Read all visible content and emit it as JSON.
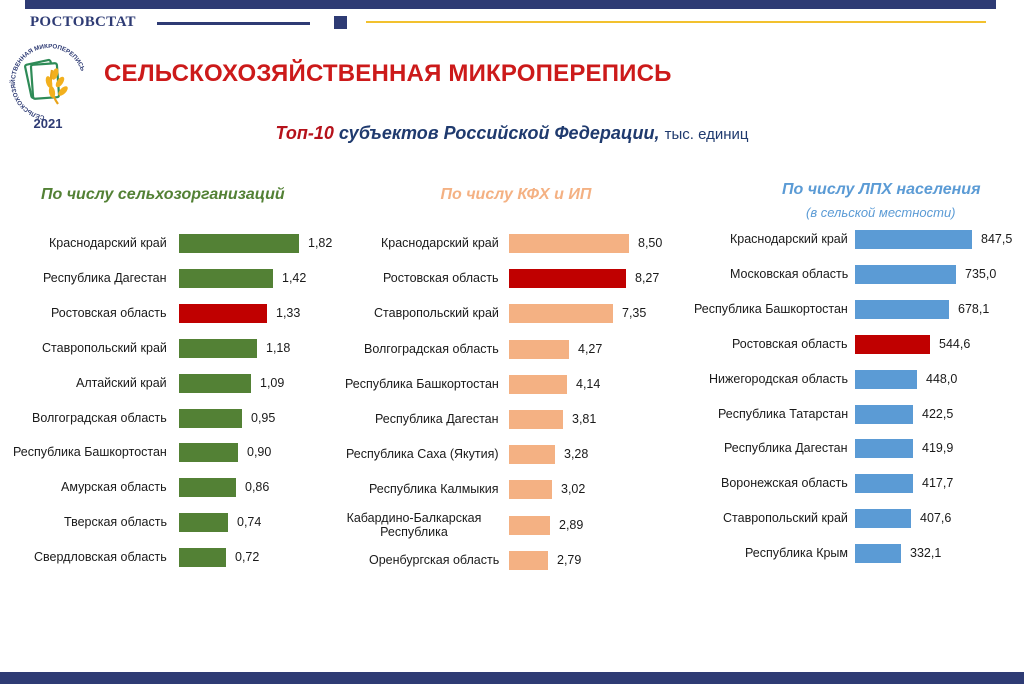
{
  "header": {
    "brand": "РОСТОВСТАТ",
    "logo_year": "2021",
    "logo_ring_text": "СЕЛЬСКОХОЗЯЙСТВЕННАЯ МИКРОПЕРЕПИСЬ",
    "title": "СЕЛЬСКОХОЗЯЙСТВЕННАЯ МИКРОПЕРЕПИСЬ",
    "subtitle_part1": "Топ-10",
    "subtitle_part2": "субъектов Российской Федерации,",
    "subtitle_unit": "тыс. единиц"
  },
  "colors": {
    "brand_blue": "#2e3b74",
    "accent_red": "#cc1a1a",
    "green": "#538135",
    "orange": "#f4b183",
    "blue": "#5b9bd5",
    "highlight": "#c00000"
  },
  "chart_data": [
    {
      "type": "bar",
      "orientation": "horizontal",
      "title": "По числу сельхозорганизаций",
      "subtitle": "",
      "color": "#538135",
      "highlight_category": "Ростовская область",
      "categories": [
        "Краснодарский край",
        "Республика Дагестан",
        "Ростовская область",
        "Ставропольский край",
        "Алтайский край",
        "Волгоградская область",
        "Республика Башкортостан",
        "Амурская область",
        "Тверская область",
        "Свердловская область"
      ],
      "values": [
        1.82,
        1.42,
        1.33,
        1.18,
        1.09,
        0.95,
        0.9,
        0.86,
        0.74,
        0.72
      ],
      "labels": [
        "1,82",
        "1,42",
        "1,33",
        "1,18",
        "1,09",
        "0,95",
        "0,90",
        "0,86",
        "0,74",
        "0,72"
      ]
    },
    {
      "type": "bar",
      "orientation": "horizontal",
      "title": "По числу КФХ и ИП",
      "subtitle": "",
      "color": "#f4b183",
      "highlight_category": "Ростовская область",
      "categories": [
        "Краснодарский край",
        "Ростовская область",
        "Ставропольский край",
        "Волгоградская область",
        "Республика Башкортостан",
        "Республика Дагестан",
        "Республика Саха (Якутия)",
        "Республика Калмыкия",
        "Кабардино-Балкарская Республика",
        "Оренбургская область"
      ],
      "values": [
        8.5,
        8.27,
        7.35,
        4.27,
        4.14,
        3.81,
        3.28,
        3.02,
        2.89,
        2.79
      ],
      "labels": [
        "8,50",
        "8,27",
        "7,35",
        "4,27",
        "4,14",
        "3,81",
        "3,28",
        "3,02",
        "2,89",
        "2,79"
      ]
    },
    {
      "type": "bar",
      "orientation": "horizontal",
      "title": "По числу ЛПХ населения",
      "subtitle": "(в сельской местности)",
      "color": "#5b9bd5",
      "highlight_category": "Ростовская область",
      "categories": [
        "Краснодарский край",
        "Московская область",
        "Республика Башкортостан",
        "Ростовская область",
        "Нижегородская область",
        "Республика Татарстан",
        "Республика Дагестан",
        "Воронежская область",
        "Ставропольский край",
        "Республика Крым"
      ],
      "values": [
        847.5,
        735.0,
        678.1,
        544.6,
        448.0,
        422.5,
        419.9,
        417.7,
        407.6,
        332.1
      ],
      "labels": [
        "847,5",
        "735,0",
        "678,1",
        "544,6",
        "448,0",
        "422,5",
        "419,9",
        "417,7",
        "407,6",
        "332,1"
      ]
    }
  ]
}
